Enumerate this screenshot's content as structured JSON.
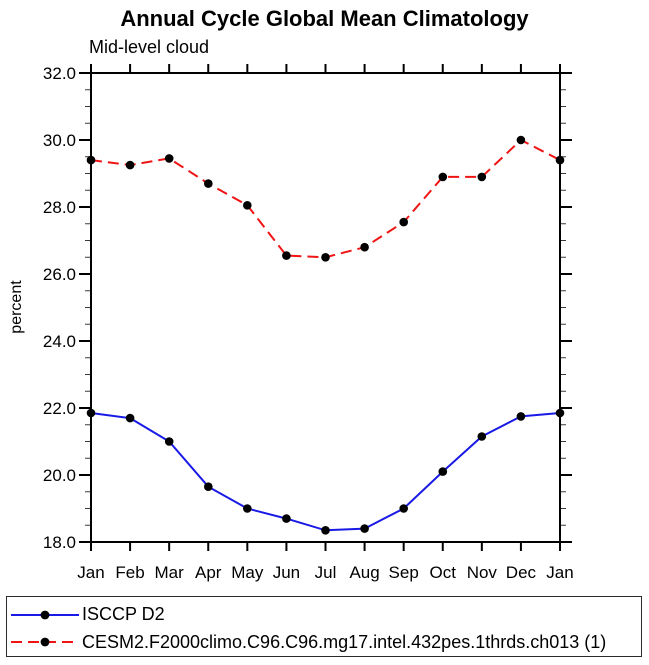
{
  "title": "Annual Cycle Global Mean Climatology",
  "subtitle": "Mid-level cloud",
  "chart_data": {
    "type": "line",
    "title": "Annual Cycle Global Mean Climatology",
    "subtitle": "Mid-level cloud",
    "xlabel": "",
    "ylabel": "percent",
    "categories": [
      "Jan",
      "Feb",
      "Mar",
      "Apr",
      "May",
      "Jun",
      "Jul",
      "Aug",
      "Sep",
      "Oct",
      "Nov",
      "Dec",
      "Jan"
    ],
    "series": [
      {
        "name": "ISCCP D2",
        "color": "#1a1ae6",
        "line_style": "solid",
        "marker": "filled-circle",
        "marker_color": "#000000",
        "values": [
          21.85,
          21.7,
          21.0,
          19.65,
          19.0,
          18.7,
          18.35,
          18.4,
          19.0,
          20.1,
          21.15,
          21.75,
          21.85
        ]
      },
      {
        "name": "CESM2.F2000climo.C96.C96.mg17.intel.432pes.1thrds.ch013 (1)",
        "color": "#f01414",
        "line_style": "dashed",
        "marker": "filled-circle",
        "marker_color": "#000000",
        "values": [
          29.4,
          29.25,
          29.45,
          28.7,
          28.05,
          26.55,
          26.5,
          26.8,
          27.55,
          28.9,
          28.9,
          30.0,
          29.4
        ]
      }
    ],
    "ylim": [
      18.0,
      32.0
    ],
    "y_major_step": 2.0,
    "y_minor_step": 0.5,
    "y_tick_labels": [
      "18.0",
      "20.0",
      "22.0",
      "24.0",
      "26.0",
      "28.0",
      "30.0",
      "32.0"
    ],
    "grid": false,
    "axis_color": "#000000",
    "legend_position": "bottom-box"
  }
}
